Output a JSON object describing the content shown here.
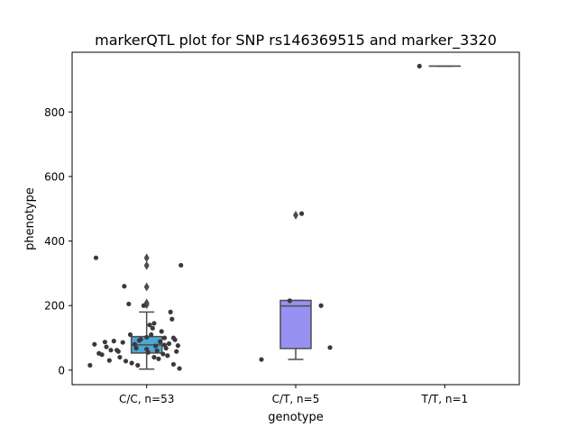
{
  "chart_data": {
    "type": "box",
    "title": "markerQTL plot for SNP rs146369515 and marker_3320",
    "xlabel": "genotype",
    "ylabel": "phenotype",
    "ylim": [
      -45,
      985
    ],
    "yticks": [
      0,
      200,
      400,
      600,
      800
    ],
    "grid": false,
    "categories": [
      "C/C, n=53",
      "C/T, n=5",
      "T/T, n=1"
    ],
    "colors": [
      "#4ba8d8",
      "#9791f2",
      "#d87ac0"
    ],
    "box_edge_color": "#4d4d4d",
    "point_color": "#3a3a3a",
    "boxes": [
      {
        "q1": 53,
        "median": 78,
        "q3": 104,
        "whisker_low": 3,
        "whisker_high": 180,
        "outliers": [
          203,
          208,
          258,
          324,
          348
        ]
      },
      {
        "q1": 67,
        "median": 199,
        "q3": 216,
        "whisker_low": 33,
        "whisker_high": 216,
        "outliers": [
          480
        ]
      },
      {
        "q1": 942,
        "median": 942,
        "q3": 942,
        "whisker_low": 942,
        "whisker_high": 942,
        "outliers": []
      }
    ],
    "points": [
      [
        {
          "x": -0.38,
          "y": 15
        },
        {
          "x": -0.34,
          "y": 348
        },
        {
          "x": -0.32,
          "y": 52
        },
        {
          "x": -0.28,
          "y": 87
        },
        {
          "x": -0.27,
          "y": 72
        },
        {
          "x": -0.25,
          "y": 30
        },
        {
          "x": -0.22,
          "y": 90
        },
        {
          "x": -0.2,
          "y": 62
        },
        {
          "x": -0.18,
          "y": 40
        },
        {
          "x": -0.15,
          "y": 260
        },
        {
          "x": -0.14,
          "y": 28
        },
        {
          "x": -0.12,
          "y": 205
        },
        {
          "x": -0.1,
          "y": 22
        },
        {
          "x": -0.08,
          "y": 80
        },
        {
          "x": -0.07,
          "y": 68
        },
        {
          "x": -0.06,
          "y": 15
        },
        {
          "x": -0.04,
          "y": 95
        },
        {
          "x": -0.02,
          "y": 200
        },
        {
          "x": 0.0,
          "y": 102
        },
        {
          "x": 0.01,
          "y": 55
        },
        {
          "x": 0.02,
          "y": 140
        },
        {
          "x": 0.03,
          "y": 110
        },
        {
          "x": 0.04,
          "y": 130
        },
        {
          "x": 0.05,
          "y": 40
        },
        {
          "x": 0.06,
          "y": 75
        },
        {
          "x": 0.07,
          "y": 60
        },
        {
          "x": 0.08,
          "y": 35
        },
        {
          "x": 0.09,
          "y": 88
        },
        {
          "x": 0.1,
          "y": 120
        },
        {
          "x": 0.11,
          "y": 50
        },
        {
          "x": 0.12,
          "y": 100
        },
        {
          "x": 0.13,
          "y": 68
        },
        {
          "x": 0.14,
          "y": 45
        },
        {
          "x": 0.15,
          "y": 82
        },
        {
          "x": 0.16,
          "y": 180
        },
        {
          "x": 0.17,
          "y": 158
        },
        {
          "x": 0.18,
          "y": 18
        },
        {
          "x": 0.19,
          "y": 94
        },
        {
          "x": 0.2,
          "y": 58
        },
        {
          "x": 0.21,
          "y": 76
        },
        {
          "x": 0.22,
          "y": 5
        },
        {
          "x": 0.23,
          "y": 325
        },
        {
          "x": -0.3,
          "y": 48
        },
        {
          "x": -0.16,
          "y": 86
        },
        {
          "x": -0.24,
          "y": 62
        },
        {
          "x": -0.11,
          "y": 110
        },
        {
          "x": 0.0,
          "y": 65
        },
        {
          "x": -0.05,
          "y": 92
        },
        {
          "x": 0.05,
          "y": 145
        },
        {
          "x": 0.12,
          "y": 78
        },
        {
          "x": -0.19,
          "y": 58
        },
        {
          "x": 0.18,
          "y": 100
        },
        {
          "x": -0.35,
          "y": 80
        }
      ],
      [
        {
          "x": -0.23,
          "y": 33
        },
        {
          "x": -0.04,
          "y": 215
        },
        {
          "x": 0.04,
          "y": 485
        },
        {
          "x": 0.17,
          "y": 200
        },
        {
          "x": 0.23,
          "y": 70
        }
      ],
      [
        {
          "x": -0.17,
          "y": 942
        }
      ]
    ]
  }
}
